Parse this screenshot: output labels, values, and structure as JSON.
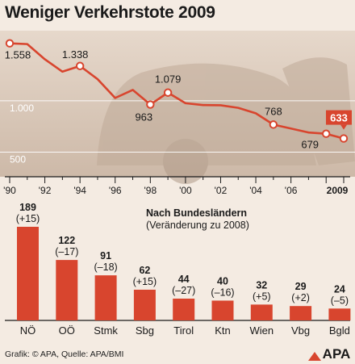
{
  "title": "Weniger Verkehrstote 2009",
  "footer": "Grafik: © APA, Quelle: APA/BMI",
  "logo_text": "APA",
  "colors": {
    "accent": "#d8452e",
    "grid": "#ffffff",
    "text": "#1a1a1a"
  },
  "chart_data": [
    {
      "type": "line",
      "title": "Weniger Verkehrstote 2009",
      "x": [
        1990,
        1991,
        1992,
        1993,
        1994,
        1995,
        1996,
        1997,
        1998,
        1999,
        2000,
        2001,
        2002,
        2003,
        2004,
        2005,
        2006,
        2007,
        2008,
        2009
      ],
      "values": [
        1558,
        1551,
        1403,
        1283,
        1338,
        1210,
        1027,
        1105,
        963,
        1079,
        976,
        958,
        956,
        931,
        878,
        768,
        730,
        691,
        679,
        633
      ],
      "marked_points": [
        {
          "year": 1990,
          "value": 1558,
          "label": "1.558"
        },
        {
          "year": 1994,
          "value": 1338,
          "label": "1.338"
        },
        {
          "year": 1998,
          "value": 963,
          "label": "963"
        },
        {
          "year": 1999,
          "value": 1079,
          "label": "1.079"
        },
        {
          "year": 2005,
          "value": 768,
          "label": "768"
        },
        {
          "year": 2008,
          "value": 679,
          "label": "679"
        },
        {
          "year": 2009,
          "value": 633,
          "label": "633"
        }
      ],
      "y_ticks": [
        {
          "value": 1000,
          "label": "1.000"
        },
        {
          "value": 500,
          "label": "500"
        }
      ],
      "x_ticks": [
        {
          "year": 1990,
          "label": "'90"
        },
        {
          "year": 1992,
          "label": "'92"
        },
        {
          "year": 1994,
          "label": "'94"
        },
        {
          "year": 1996,
          "label": "'96"
        },
        {
          "year": 1998,
          "label": "'98"
        },
        {
          "year": 2000,
          "label": "'00"
        },
        {
          "year": 2002,
          "label": "'02"
        },
        {
          "year": 2004,
          "label": "'04"
        },
        {
          "year": 2006,
          "label": "'06"
        },
        {
          "year": 2009,
          "label": "2009"
        }
      ],
      "ylim": [
        300,
        1650
      ],
      "grid": true
    },
    {
      "type": "bar",
      "title": "Nach Bundesländern",
      "subtitle": "(Veränderung zu 2008)",
      "categories": [
        "NÖ",
        "OÖ",
        "Stmk",
        "Sbg",
        "Tirol",
        "Ktn",
        "Wien",
        "Vbg",
        "Bgld"
      ],
      "values": [
        189,
        122,
        91,
        62,
        44,
        40,
        32,
        29,
        24
      ],
      "value_labels": [
        "189",
        "122",
        "91",
        "62",
        "44",
        "40",
        "32",
        "29",
        "24"
      ],
      "changes": [
        "(+15)",
        "(–17)",
        "(–18)",
        "(+15)",
        "(–27)",
        "(–16)",
        "(+5)",
        "(+2)",
        "(–5)"
      ],
      "ylim": [
        0,
        189
      ]
    }
  ]
}
